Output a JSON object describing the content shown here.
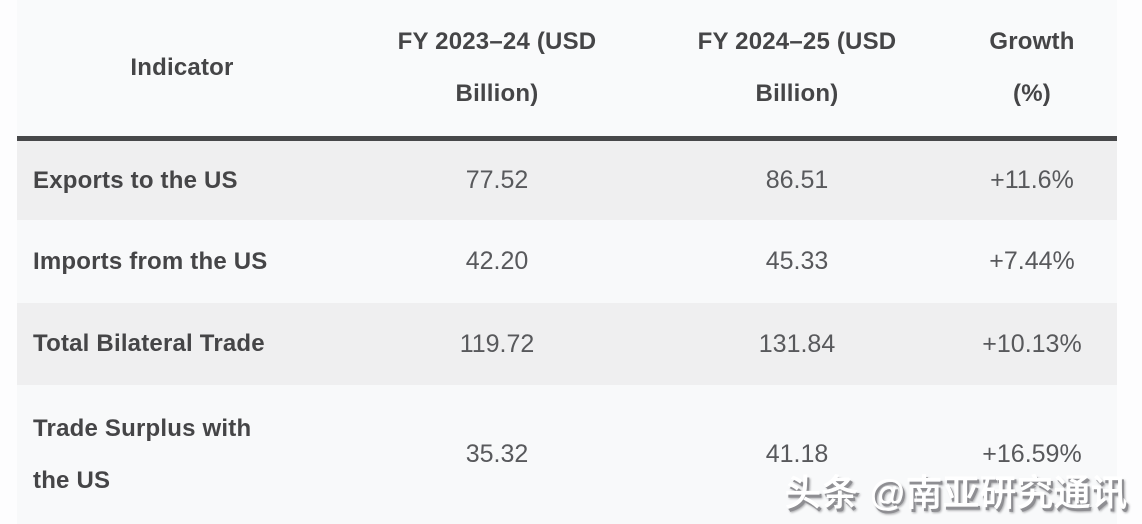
{
  "table": {
    "columns": [
      "Indicator",
      "FY 2023–24 (USD Billion)",
      "FY 2024–25 (USD Billion)",
      "Growth (%)"
    ],
    "rows": [
      {
        "indicator": "Exports to the US",
        "fy2023_24": "77.52",
        "fy2024_25": "86.51",
        "growth": "+11.6%"
      },
      {
        "indicator": "Imports from the US",
        "fy2023_24": "42.20",
        "fy2024_25": "45.33",
        "growth": "+7.44%"
      },
      {
        "indicator": "Total Bilateral Trade",
        "fy2023_24": "119.72",
        "fy2024_25": "131.84",
        "growth": "+10.13%"
      },
      {
        "indicator": "Trade Surplus with the US",
        "fy2023_24": "35.32",
        "fy2024_25": "41.18",
        "growth": "+16.59%"
      }
    ],
    "colors": {
      "header_rule": "#47484a",
      "stripe": "#efeff0",
      "plain_row": "#f8f9fa",
      "label_text": "#454547",
      "value_text": "#58595c"
    }
  },
  "watermark": {
    "text": "头条 @南亚研究通讯"
  },
  "chart_data": {
    "type": "table",
    "title": "",
    "columns": [
      "Indicator",
      "FY 2023–24 (USD Billion)",
      "FY 2024–25 (USD Billion)",
      "Growth (%)"
    ],
    "rows": [
      [
        "Exports to the US",
        77.52,
        86.51,
        "+11.6%"
      ],
      [
        "Imports from the US",
        42.2,
        45.33,
        "+7.44%"
      ],
      [
        "Total Bilateral Trade",
        119.72,
        131.84,
        "+10.13%"
      ],
      [
        "Trade Surplus with the US",
        35.32,
        41.18,
        "+16.59%"
      ]
    ],
    "layout_hints": {
      "striped_rows": [
        0,
        2
      ],
      "value_columns_alignment": "center",
      "indicator_column_alignment": "left"
    }
  }
}
